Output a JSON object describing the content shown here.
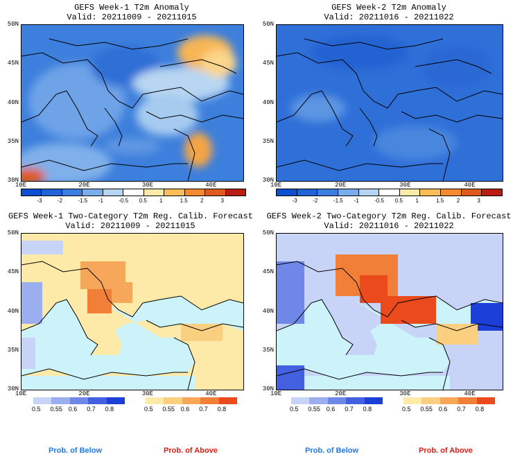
{
  "panels": {
    "week1_anom": {
      "title": "GEFS Week-1 T2m Anomaly",
      "valid": "Valid: 20211009 - 20211015"
    },
    "week2_anom": {
      "title": "GEFS Week-2 T2m Anomaly",
      "valid": "Valid: 20211016 - 20211022"
    },
    "week1_prob": {
      "title": "GEFS Week-1 Two-Category T2m Reg. Calib. Forecast",
      "valid": "Valid: 20211009 - 20211015"
    },
    "week2_prob": {
      "title": "GEFS Week-2 Two-Category T2m Reg. Calib. Forecast",
      "valid": "Valid: 20211016 - 20211022"
    }
  },
  "lat_labels": [
    "50N",
    "45N",
    "40N",
    "35N",
    "30N"
  ],
  "lon_labels": [
    "10E",
    "20E",
    "30E",
    "40E"
  ],
  "anomaly_colorbar": {
    "labels": [
      "-3",
      "-2",
      "-1.5",
      "-1",
      "-0.5",
      "0.5",
      "1",
      "1.5",
      "2",
      "3"
    ],
    "colors": [
      "#0d4fcf",
      "#1f63d6",
      "#3a7fdf",
      "#78acea",
      "#b4d4f2",
      "#ffffff",
      "#fde9a8",
      "#fbbd55",
      "#f28a30",
      "#e05a1f",
      "#b81c12"
    ]
  },
  "prob_below": {
    "labels": [
      "0.5",
      "0.55",
      "0.6",
      "0.7",
      "0.8"
    ],
    "colors": [
      "#c7d3f7",
      "#9aaef0",
      "#6f88e8",
      "#4260e0",
      "#1c3fd8"
    ],
    "caption": "Prob. of Below",
    "caption_color": "#1e78e6"
  },
  "prob_above": {
    "labels": [
      "0.5",
      "0.55",
      "0.6",
      "0.7",
      "0.8"
    ],
    "colors": [
      "#fde9a8",
      "#fbcf80",
      "#f7a75a",
      "#f17f37",
      "#eb4a1c"
    ],
    "caption": "Prob. of Above",
    "caption_color": "#e11a10"
  },
  "map_colors": {
    "sea_prob": "#ccf2fa",
    "anom_base_week1": "#3d7fdc",
    "anom_base_week2": "#2f6fd8"
  }
}
